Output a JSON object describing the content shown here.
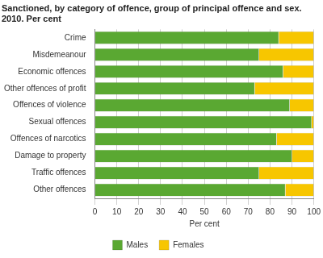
{
  "chart_data": {
    "type": "bar",
    "orientation": "horizontal",
    "stacked": true,
    "title": [
      "Sanctioned, by category of offence, group of principal offence and sex.",
      "2010. Per cent"
    ],
    "x_label": "Per cent",
    "categories": [
      "Crime",
      "Misdemeanour",
      "Economic offences",
      "Other offences of profit",
      "Offences of violence",
      "Sexual offences",
      "Offences of narcotics",
      "Damage to property",
      "Traffic offences",
      "Other offences"
    ],
    "series": [
      {
        "name": "Males",
        "color": "#5aa832",
        "values": [
          84,
          75,
          86,
          73,
          89,
          99,
          83,
          90,
          75,
          87
        ]
      },
      {
        "name": "Females",
        "color": "#f7c600",
        "values": [
          16,
          25,
          14,
          27,
          11,
          1,
          17,
          10,
          25,
          13
        ]
      }
    ],
    "xlim": [
      0,
      100
    ],
    "xticks": [
      0,
      10,
      20,
      30,
      40,
      50,
      60,
      70,
      80,
      90,
      100
    ],
    "grid": true,
    "legend": "bottom"
  }
}
